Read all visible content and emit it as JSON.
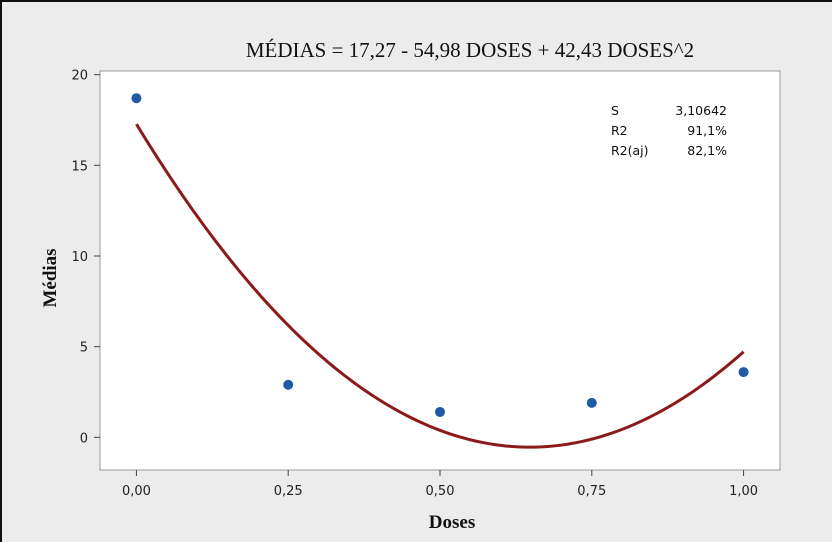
{
  "colors": {
    "background": "#ececec",
    "plot_area": "#ffffff",
    "marker": "#1f5aa6",
    "fit_line": "#8b1a1a"
  },
  "chart_data": {
    "type": "scatter",
    "title": "MÉDIAS = 17,27 - 54,98 DOSES + 42,43 DOSES^2",
    "xlabel": "Doses",
    "ylabel": "Médias",
    "xlim": [
      -0.06,
      1.06
    ],
    "ylim": [
      -1.8,
      20.2
    ],
    "x_ticks": [
      0,
      0.25,
      0.5,
      0.75,
      1.0
    ],
    "x_tick_labels": [
      "0,00",
      "0,25",
      "0,50",
      "0,75",
      "1,00"
    ],
    "y_ticks": [
      0,
      5,
      10,
      15,
      20
    ],
    "y_tick_labels": [
      "0",
      "5",
      "10",
      "15",
      "20"
    ],
    "series": [
      {
        "type": "scatter",
        "x": [
          0.0,
          0.25,
          0.5,
          0.75,
          1.0
        ],
        "y": [
          18.7,
          2.9,
          1.4,
          1.9,
          3.6
        ]
      }
    ],
    "fit": {
      "type": "quadratic",
      "coefficients": [
        17.27,
        -54.98,
        42.43
      ],
      "x_range": [
        0,
        1
      ]
    },
    "stats": [
      {
        "label": "S",
        "value": "3,10642"
      },
      {
        "label": "R2",
        "value": "91,1%"
      },
      {
        "label": "R2(aj)",
        "value": "82,1%"
      }
    ]
  }
}
